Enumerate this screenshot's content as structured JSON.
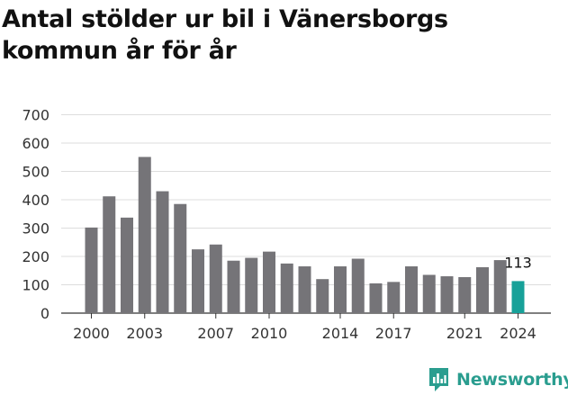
{
  "colors": {
    "bar": "#757478",
    "highlight": "#17a199",
    "grid": "#dddddd",
    "brand": "#2a9d8f"
  },
  "brand": {
    "name": "Newsworthy",
    "icon": "chart-bubble-icon"
  },
  "chart_data": {
    "type": "bar",
    "title": "Antal stölder ur bil i Vänersborgs kommun år för år",
    "xlabel": "",
    "ylabel": "",
    "ylim": [
      0,
      700
    ],
    "yticks": [
      0,
      100,
      200,
      300,
      400,
      500,
      600,
      700
    ],
    "grid": true,
    "categories": [
      "2000",
      "2001",
      "2002",
      "2003",
      "2004",
      "2005",
      "2006",
      "2007",
      "2008",
      "2009",
      "2010",
      "2011",
      "2012",
      "2013",
      "2014",
      "2015",
      "2016",
      "2017",
      "2018",
      "2019",
      "2020",
      "2021",
      "2022",
      "2023",
      "2024"
    ],
    "xticks": [
      "2000",
      "2003",
      "2007",
      "2010",
      "2014",
      "2017",
      "2021",
      "2024"
    ],
    "values": [
      302,
      412,
      337,
      551,
      430,
      385,
      225,
      242,
      185,
      195,
      217,
      175,
      165,
      120,
      165,
      192,
      105,
      110,
      165,
      135,
      130,
      127,
      162,
      187,
      113
    ],
    "highlight_index": 24,
    "annotation": "113"
  }
}
